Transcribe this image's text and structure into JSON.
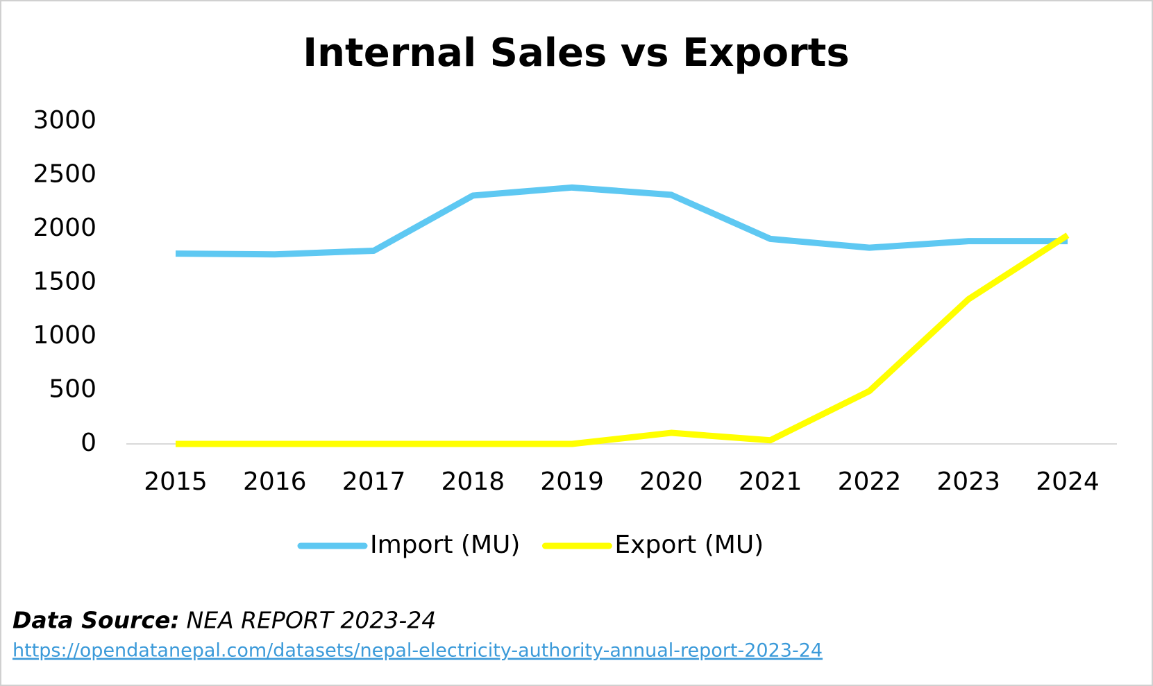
{
  "chart_data": {
    "type": "line",
    "title": "Internal Sales vs Exports",
    "categories": [
      "2015",
      "2016",
      "2017",
      "2018",
      "2019",
      "2020",
      "2021",
      "2022",
      "2023",
      "2024"
    ],
    "series": [
      {
        "name": "Import (MU)",
        "color": "#5ec8f2",
        "values": [
          1770,
          1763,
          1797,
          2310,
          2385,
          2317,
          1907,
          1825,
          1886,
          1886
        ]
      },
      {
        "name": "Export (MU)",
        "color": "#ffff00",
        "values": [
          0,
          0,
          0,
          0,
          0,
          103,
          34,
          492,
          1346,
          1941
        ]
      }
    ],
    "ylim": [
      0,
      3000
    ],
    "yticks": [
      0,
      500,
      1000,
      1500,
      2000,
      2500,
      3000
    ],
    "grid": false,
    "legend": "bottom",
    "source_label": "Data Source:",
    "source": "NEA REPORT 2023-24",
    "source_url": "https://opendatanepal.com/datasets/nepal-electricity-authority-annual-report-2023-24"
  }
}
